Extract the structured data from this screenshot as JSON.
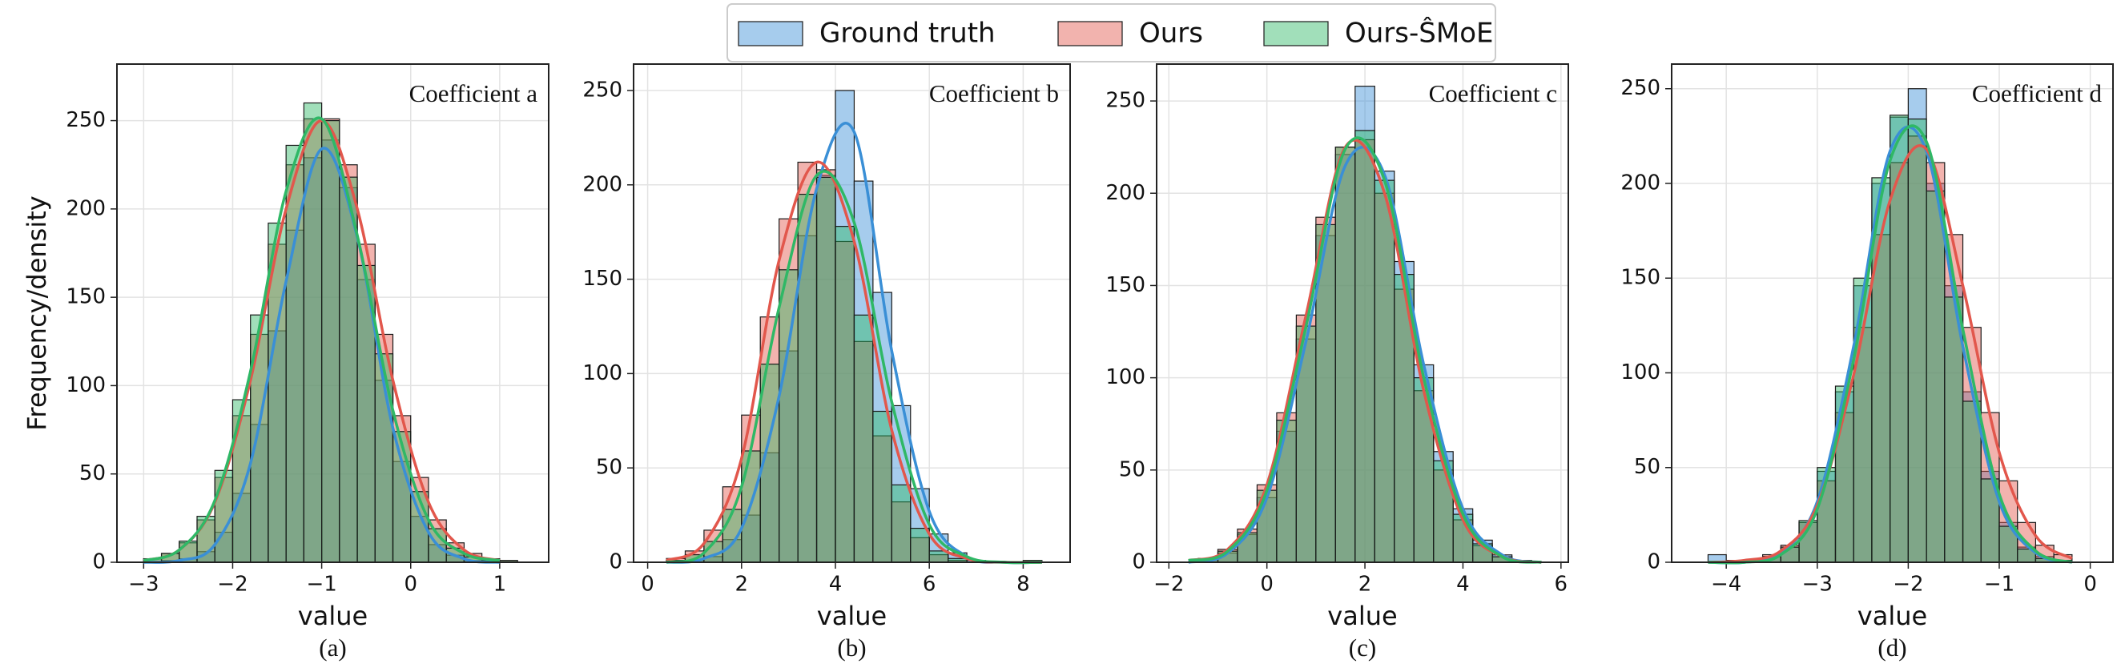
{
  "chart_data": [
    {
      "type": "histogram",
      "title": "Coefficient a",
      "xlabel": "value",
      "ylabel": "Frequency/density",
      "caption": "(a)",
      "xlim": [
        -3.3,
        1.55
      ],
      "xticks": [
        {
          "value": -3,
          "label": "−3"
        },
        {
          "value": -2,
          "label": "−2"
        },
        {
          "value": -1,
          "label": "−1"
        },
        0,
        1
      ],
      "ylim": [
        0,
        282
      ],
      "yticks": [
        0,
        50,
        100,
        150,
        200,
        250
      ],
      "grid": true,
      "bins": [
        -3,
        -2.8,
        -2.6,
        -2.4,
        -2.2,
        -2,
        -1.8,
        -1.6,
        -1.4,
        -1.2,
        -1,
        -0.8,
        -0.6,
        -0.4,
        -0.2,
        0,
        0.2,
        0.4,
        0.6,
        0.8,
        1,
        1.2
      ],
      "series": [
        {
          "name": "Ground truth",
          "color": "#3a8fd6",
          "values": [
            0,
            1,
            2,
            6,
            17,
            39,
            78,
            131,
            188,
            229,
            239,
            212,
            160,
            103,
            57,
            26,
            10,
            4,
            1,
            0,
            0
          ],
          "kde": {
            "x": [
              -3,
              -2.6,
              -2.2,
              -1.8,
              -1.4,
              -1,
              -0.6,
              -0.2,
              0.2,
              0.6,
              1
            ],
            "values": [
              0,
              1,
              10,
              56,
              159,
              234,
              184,
              76,
              17,
              2,
              0
            ]
          }
        },
        {
          "name": "Ours",
          "color": "#e2574c",
          "values": [
            2,
            5,
            11,
            24,
            48,
            83,
            129,
            180,
            225,
            251,
            251,
            225,
            180,
            129,
            83,
            48,
            24,
            11,
            5,
            2,
            1
          ],
          "kde": {
            "x": [
              -3,
              -2.6,
              -2.2,
              -1.8,
              -1.4,
              -1,
              -0.6,
              -0.2,
              0.2,
              0.6,
              1
            ],
            "values": [
              1,
              7,
              34,
              103,
              200,
              250,
              200,
              103,
              34,
              7,
              1
            ]
          }
        },
        {
          "name": "Ours-ŜMoE",
          "color": "#2fb866",
          "values": [
            2,
            5,
            12,
            26,
            52,
            92,
            140,
            192,
            236,
            260,
            250,
            218,
            168,
            118,
            74,
            40,
            19,
            8,
            3,
            1,
            1
          ],
          "kde": {
            "x": [
              -3,
              -2.6,
              -2.2,
              -1.8,
              -1.4,
              -1,
              -0.6,
              -0.2,
              0.2,
              0.6,
              1
            ],
            "values": [
              1,
              7,
              35,
              108,
              210,
              251,
              185,
              86,
              24,
              5,
              1
            ]
          }
        }
      ]
    },
    {
      "type": "histogram",
      "title": "Coefficient b",
      "xlabel": "value",
      "caption": "(b)",
      "xlim": [
        -0.3,
        9.0
      ],
      "xticks": [
        0,
        2,
        4,
        6,
        8
      ],
      "ylim": [
        0,
        264
      ],
      "yticks": [
        0,
        50,
        100,
        150,
        200,
        250
      ],
      "grid": true,
      "bins": [
        0.4,
        0.8,
        1.2,
        1.6,
        2,
        2.4,
        2.8,
        3.2,
        3.6,
        4,
        4.4,
        4.8,
        5.2,
        5.6,
        6,
        6.4,
        6.8,
        7.2,
        7.6,
        8,
        8.4
      ],
      "series": [
        {
          "name": "Ground truth",
          "color": "#3a8fd6",
          "values": [
            0,
            1,
            3,
            12,
            25,
            58,
            112,
            173,
            205,
            250,
            202,
            143,
            83,
            39,
            15,
            5,
            1,
            0,
            0,
            0
          ],
          "kde": {
            "x": [
              0.4,
              1.2,
              2,
              2.8,
              3.6,
              4.4,
              5.2,
              6,
              6.8,
              7.6,
              8.4
            ],
            "values": [
              0,
              2,
              18,
              88,
              198,
              228,
              112,
              27,
              3,
              0,
              0
            ]
          }
        },
        {
          "name": "Ours",
          "color": "#e2574c",
          "values": [
            2,
            6,
            17,
            40,
            78,
            130,
            182,
            212,
            208,
            170,
            117,
            67,
            32,
            13,
            4,
            1,
            0,
            0,
            0,
            1
          ],
          "kde": {
            "x": [
              0.4,
              1.2,
              2,
              2.8,
              3.6,
              4.4,
              5.2,
              6,
              6.8,
              7.6,
              8.4
            ],
            "values": [
              1,
              10,
              55,
              160,
              212,
              170,
              70,
              15,
              2,
              0,
              0
            ]
          }
        },
        {
          "name": "Ours-ŜMoE",
          "color": "#2fb866",
          "values": [
            1,
            4,
            11,
            28,
            59,
            105,
            155,
            195,
            204,
            178,
            131,
            80,
            41,
            18,
            6,
            2,
            0,
            0,
            0,
            0
          ],
          "kde": {
            "x": [
              0.4,
              1.2,
              2,
              2.8,
              3.6,
              4.4,
              5.2,
              6,
              6.8,
              7.6,
              8.4
            ],
            "values": [
              0,
              5,
              40,
              135,
              205,
              180,
              85,
              20,
              3,
              0,
              0
            ]
          }
        }
      ]
    },
    {
      "type": "histogram",
      "title": "Coefficient c",
      "xlabel": "value",
      "caption": "(c)",
      "xlim": [
        -2.25,
        6.15
      ],
      "xticks": [
        {
          "value": -2,
          "label": "−2"
        },
        0,
        2,
        4,
        6
      ],
      "ylim": [
        0,
        270
      ],
      "yticks": [
        0,
        50,
        100,
        150,
        200,
        250
      ],
      "grid": true,
      "bins": [
        -1.4,
        -1,
        -0.6,
        -0.2,
        0.2,
        0.6,
        1,
        1.4,
        1.8,
        2.2,
        2.6,
        3,
        3.4,
        3.8,
        4.2,
        4.6,
        5,
        5.4,
        5.8
      ],
      "series": [
        {
          "name": "Ground truth",
          "color": "#3a8fd6",
          "values": [
            2,
            5,
            15,
            35,
            71,
            121,
            177,
            221,
            258,
            212,
            163,
            107,
            60,
            29,
            12,
            4,
            1,
            0
          ],
          "kde": {
            "x": [
              -1.6,
              -0.8,
              0,
              0.8,
              1.6,
              2.4,
              3.2,
              4,
              4.8,
              5.6
            ],
            "values": [
              0,
              5,
              35,
              120,
              215,
              210,
              107,
              29,
              4,
              0
            ]
          }
        },
        {
          "name": "Ours",
          "color": "#e2574c",
          "values": [
            2,
            7,
            18,
            42,
            81,
            134,
            187,
            225,
            229,
            200,
            148,
            93,
            50,
            23,
            9,
            3,
            1,
            0
          ],
          "kde": {
            "x": [
              -1.6,
              -0.8,
              0,
              0.8,
              1.6,
              2.4,
              3.2,
              4,
              4.8,
              5.6
            ],
            "values": [
              1,
              7,
              42,
              134,
              225,
              200,
              93,
              23,
              3,
              0
            ]
          }
        },
        {
          "name": "Ours-ŜMoE",
          "color": "#2fb866",
          "values": [
            2,
            6,
            16,
            39,
            77,
            128,
            183,
            225,
            234,
            207,
            156,
            100,
            55,
            26,
            10,
            3,
            1,
            0
          ],
          "kde": {
            "x": [
              -1.6,
              -0.8,
              0,
              0.8,
              1.6,
              2.4,
              3.2,
              4,
              4.8,
              5.6
            ],
            "values": [
              1,
              6,
              39,
              128,
              224,
              207,
              100,
              26,
              3,
              0
            ]
          }
        }
      ]
    },
    {
      "type": "histogram",
      "title": "Coefficient d",
      "xlabel": "value",
      "caption": "(d)",
      "xlim": [
        -4.6,
        0.25
      ],
      "xticks": [
        {
          "value": -4,
          "label": "−4"
        },
        {
          "value": -3,
          "label": "−3"
        },
        {
          "value": -2,
          "label": "−2"
        },
        {
          "value": -1,
          "label": "−1"
        },
        0
      ],
      "ylim": [
        0,
        263
      ],
      "yticks": [
        0,
        50,
        100,
        150,
        200,
        250
      ],
      "grid": true,
      "bins": [
        -4.4,
        -4.2,
        -4,
        -3.8,
        -3.6,
        -3.4,
        -3.2,
        -3,
        -2.8,
        -2.6,
        -2.4,
        -2.2,
        -2,
        -1.8,
        -1.6,
        -1.4,
        -1.2,
        -1,
        -0.8,
        -0.6,
        -0.4,
        -0.2
      ],
      "series": [
        {
          "name": "Ground truth",
          "color": "#3a8fd6",
          "values": [
            0,
            4,
            1,
            1,
            3,
            8,
            21,
            48,
            90,
            146,
            200,
            235,
            250,
            200,
            146,
            90,
            48,
            21,
            8,
            3,
            1
          ],
          "kde": {
            "x": [
              -4.2,
              -3.8,
              -3.4,
              -3,
              -2.6,
              -2.2,
              -1.8,
              -1.4,
              -1,
              -0.6,
              -0.2
            ],
            "values": [
              0,
              0,
              5,
              32,
              114,
              217,
              217,
              114,
              32,
              5,
              0
            ]
          }
        },
        {
          "name": "Ours",
          "color": "#e2574c",
          "values": [
            0,
            0,
            0,
            1,
            4,
            9,
            21,
            43,
            79,
            124,
            173,
            211,
            225,
            211,
            173,
            124,
            79,
            43,
            21,
            9,
            4
          ],
          "kde": {
            "x": [
              -4.2,
              -3.8,
              -3.4,
              -3,
              -2.6,
              -2.2,
              -1.8,
              -1.4,
              -1,
              -0.6,
              -0.2
            ],
            "values": [
              0,
              1,
              6,
              30,
              99,
              191,
              218,
              146,
              58,
              14,
              2
            ]
          }
        },
        {
          "name": "Ours-ŜMoE",
          "color": "#2fb866",
          "values": [
            0,
            0,
            0,
            1,
            3,
            8,
            22,
            50,
            93,
            150,
            203,
            236,
            234,
            196,
            140,
            85,
            44,
            19,
            7,
            2,
            1
          ],
          "kde": {
            "x": [
              -4.2,
              -3.8,
              -3.4,
              -3,
              -2.6,
              -2.2,
              -1.8,
              -1.4,
              -1,
              -0.6,
              -0.2
            ],
            "values": [
              0,
              0,
              4,
              28,
              107,
              212,
              222,
              123,
              36,
              6,
              0
            ]
          }
        }
      ]
    }
  ]
}
